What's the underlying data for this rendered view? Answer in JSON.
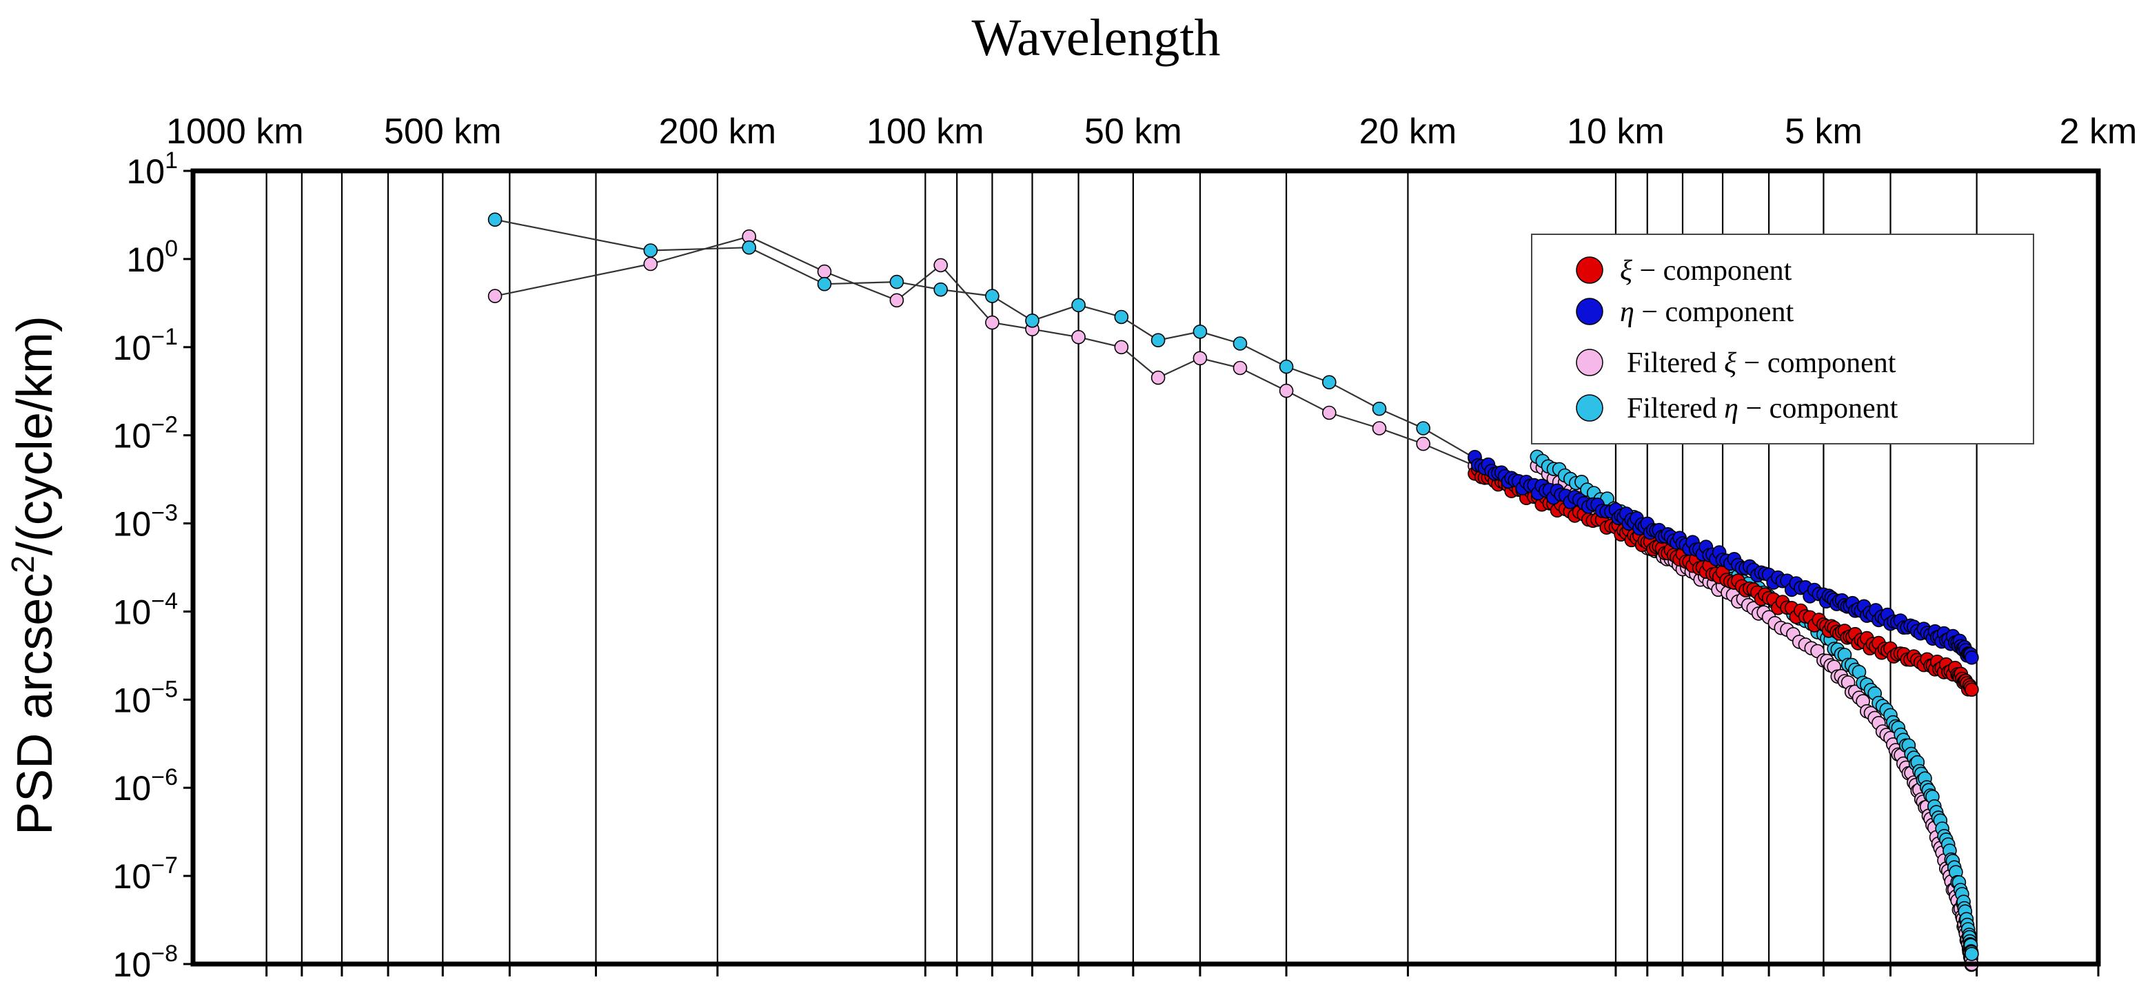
{
  "chart_data": {
    "type": "scatter",
    "title": "Wavelength",
    "ylabel": "PSD arcsec²/(cycle/km)",
    "x_scale": "log (wavelength, decreasing left to right)",
    "xlim_km": [
      1150,
      2
    ],
    "ylim": [
      1e-08,
      10
    ],
    "y_scale": "log",
    "grid": "vertical",
    "legend_position": "top-right",
    "x_tick_labels": [
      {
        "km": 1000,
        "label": "1000 km"
      },
      {
        "km": 500,
        "label": "500 km"
      },
      {
        "km": 200,
        "label": "200 km"
      },
      {
        "km": 100,
        "label": "100 km"
      },
      {
        "km": 50,
        "label": "50 km"
      },
      {
        "km": 20,
        "label": "20 km"
      },
      {
        "km": 10,
        "label": "10 km"
      },
      {
        "km": 5,
        "label": "5 km"
      },
      {
        "km": 2,
        "label": "2 km"
      }
    ],
    "x_grid_km": [
      900,
      800,
      700,
      600,
      500,
      400,
      300,
      200,
      100,
      90,
      80,
      70,
      60,
      50,
      40,
      30,
      20,
      10,
      9,
      8,
      7,
      6,
      5,
      4,
      3,
      2
    ],
    "y_tick_labels": [
      {
        "exp": 1,
        "base": "10",
        "sup": "1"
      },
      {
        "exp": 0,
        "base": "10",
        "sup": "0"
      },
      {
        "exp": -1,
        "base": "10",
        "sup": "−1"
      },
      {
        "exp": -2,
        "base": "10",
        "sup": "−2"
      },
      {
        "exp": -3,
        "base": "10",
        "sup": "−3"
      },
      {
        "exp": -4,
        "base": "10",
        "sup": "−4"
      },
      {
        "exp": -5,
        "base": "10",
        "sup": "−5"
      },
      {
        "exp": -6,
        "base": "10",
        "sup": "−6"
      },
      {
        "exp": -7,
        "base": "10",
        "sup": "−7"
      },
      {
        "exp": -8,
        "base": "10",
        "sup": "−8"
      }
    ],
    "legend": [
      {
        "key": "xi",
        "symbol": "ξ",
        "text": " − component",
        "prefix": ""
      },
      {
        "key": "eta",
        "symbol": "η",
        "text": " − component",
        "prefix": ""
      },
      {
        "key": "fxi",
        "symbol": "ξ",
        "text": " − component",
        "prefix": "Filtered "
      },
      {
        "key": "feta",
        "symbol": "η",
        "text": " − component",
        "prefix": "Filtered "
      }
    ],
    "series": [
      {
        "key": "fxi",
        "name": "Filtered ξ − component",
        "color": "#f5b8e8",
        "lines": true,
        "points": [
          [
            13,
            0.0045
          ],
          [
            11,
            0.0018
          ],
          [
            9,
            0.00055
          ],
          [
            8,
            0.00032
          ],
          [
            7,
            0.00018
          ],
          [
            6,
            8.5e-05
          ],
          [
            5,
            3e-05
          ],
          [
            4.5,
            1.2e-05
          ],
          [
            4,
            3.5e-06
          ],
          [
            3.7,
            1.2e-06
          ],
          [
            3.5,
            4.5e-07
          ],
          [
            3.3,
            1.1e-07
          ],
          [
            3.15,
            3.5e-08
          ],
          [
            3.08,
            1.5e-08
          ],
          [
            3.05,
            1e-08
          ]
        ],
        "anchors": [
          [
            420,
            0.38
          ],
          [
            250,
            0.88
          ],
          [
            180,
            1.8
          ],
          [
            140,
            0.72
          ],
          [
            110,
            0.34
          ],
          [
            95,
            0.85
          ],
          [
            80,
            0.19
          ],
          [
            70,
            0.16
          ],
          [
            60,
            0.13
          ],
          [
            52,
            0.1
          ],
          [
            46,
            0.045
          ],
          [
            40,
            0.075
          ],
          [
            35,
            0.058
          ],
          [
            30,
            0.032
          ],
          [
            26,
            0.018
          ],
          [
            22,
            0.012
          ],
          [
            19,
            0.008
          ],
          [
            16,
            0.0045
          ]
        ]
      },
      {
        "key": "feta",
        "name": "Filtered η − component",
        "color": "#2fc0e8",
        "lines": true,
        "points": [
          [
            13,
            0.0055
          ],
          [
            11,
            0.0025
          ],
          [
            9,
            0.00085
          ],
          [
            8,
            0.0005
          ],
          [
            7,
            0.0003
          ],
          [
            6,
            0.00015
          ],
          [
            5,
            5.5e-05
          ],
          [
            4.5,
            2.2e-05
          ],
          [
            4,
            6.5e-06
          ],
          [
            3.7,
            2.2e-06
          ],
          [
            3.5,
            8.5e-07
          ],
          [
            3.3,
            2.2e-07
          ],
          [
            3.15,
            6e-08
          ],
          [
            3.08,
            2.2e-08
          ],
          [
            3.05,
            1.3e-08
          ]
        ],
        "anchors": [
          [
            420,
            2.8
          ],
          [
            250,
            1.25
          ],
          [
            180,
            1.35
          ],
          [
            140,
            0.52
          ],
          [
            110,
            0.55
          ],
          [
            95,
            0.45
          ],
          [
            80,
            0.38
          ],
          [
            70,
            0.2
          ],
          [
            60,
            0.3
          ],
          [
            52,
            0.22
          ],
          [
            46,
            0.12
          ],
          [
            40,
            0.15
          ],
          [
            35,
            0.11
          ],
          [
            30,
            0.06
          ],
          [
            26,
            0.04
          ],
          [
            22,
            0.02
          ],
          [
            19,
            0.012
          ],
          [
            16,
            0.0055
          ]
        ]
      },
      {
        "key": "xi",
        "name": "ξ − component",
        "color": "#e00000",
        "lines": false,
        "points": [
          [
            16,
            0.0038
          ],
          [
            14,
            0.0025
          ],
          [
            12,
            0.0015
          ],
          [
            10,
            0.0009
          ],
          [
            9,
            0.0006
          ],
          [
            8,
            0.0004
          ],
          [
            7,
            0.00025
          ],
          [
            6,
            0.00014
          ],
          [
            5,
            7e-05
          ],
          [
            4.5,
            5e-05
          ],
          [
            4,
            3.5e-05
          ],
          [
            3.5,
            2.5e-05
          ],
          [
            3.2,
            2e-05
          ],
          [
            3.05,
            1.3e-05
          ]
        ]
      },
      {
        "key": "eta",
        "name": "η − component",
        "color": "#0a10d8",
        "lines": false,
        "points": [
          [
            16,
            0.005
          ],
          [
            14,
            0.003
          ],
          [
            12,
            0.0021
          ],
          [
            10,
            0.0013
          ],
          [
            9,
            0.0009
          ],
          [
            8,
            0.0006
          ],
          [
            7,
            0.0004
          ],
          [
            6,
            0.00025
          ],
          [
            5,
            0.00015
          ],
          [
            4.5,
            0.00011
          ],
          [
            4,
            8e-05
          ],
          [
            3.5,
            5.5e-05
          ],
          [
            3.2,
            4.5e-05
          ],
          [
            3.05,
            3e-05
          ]
        ]
      }
    ]
  }
}
